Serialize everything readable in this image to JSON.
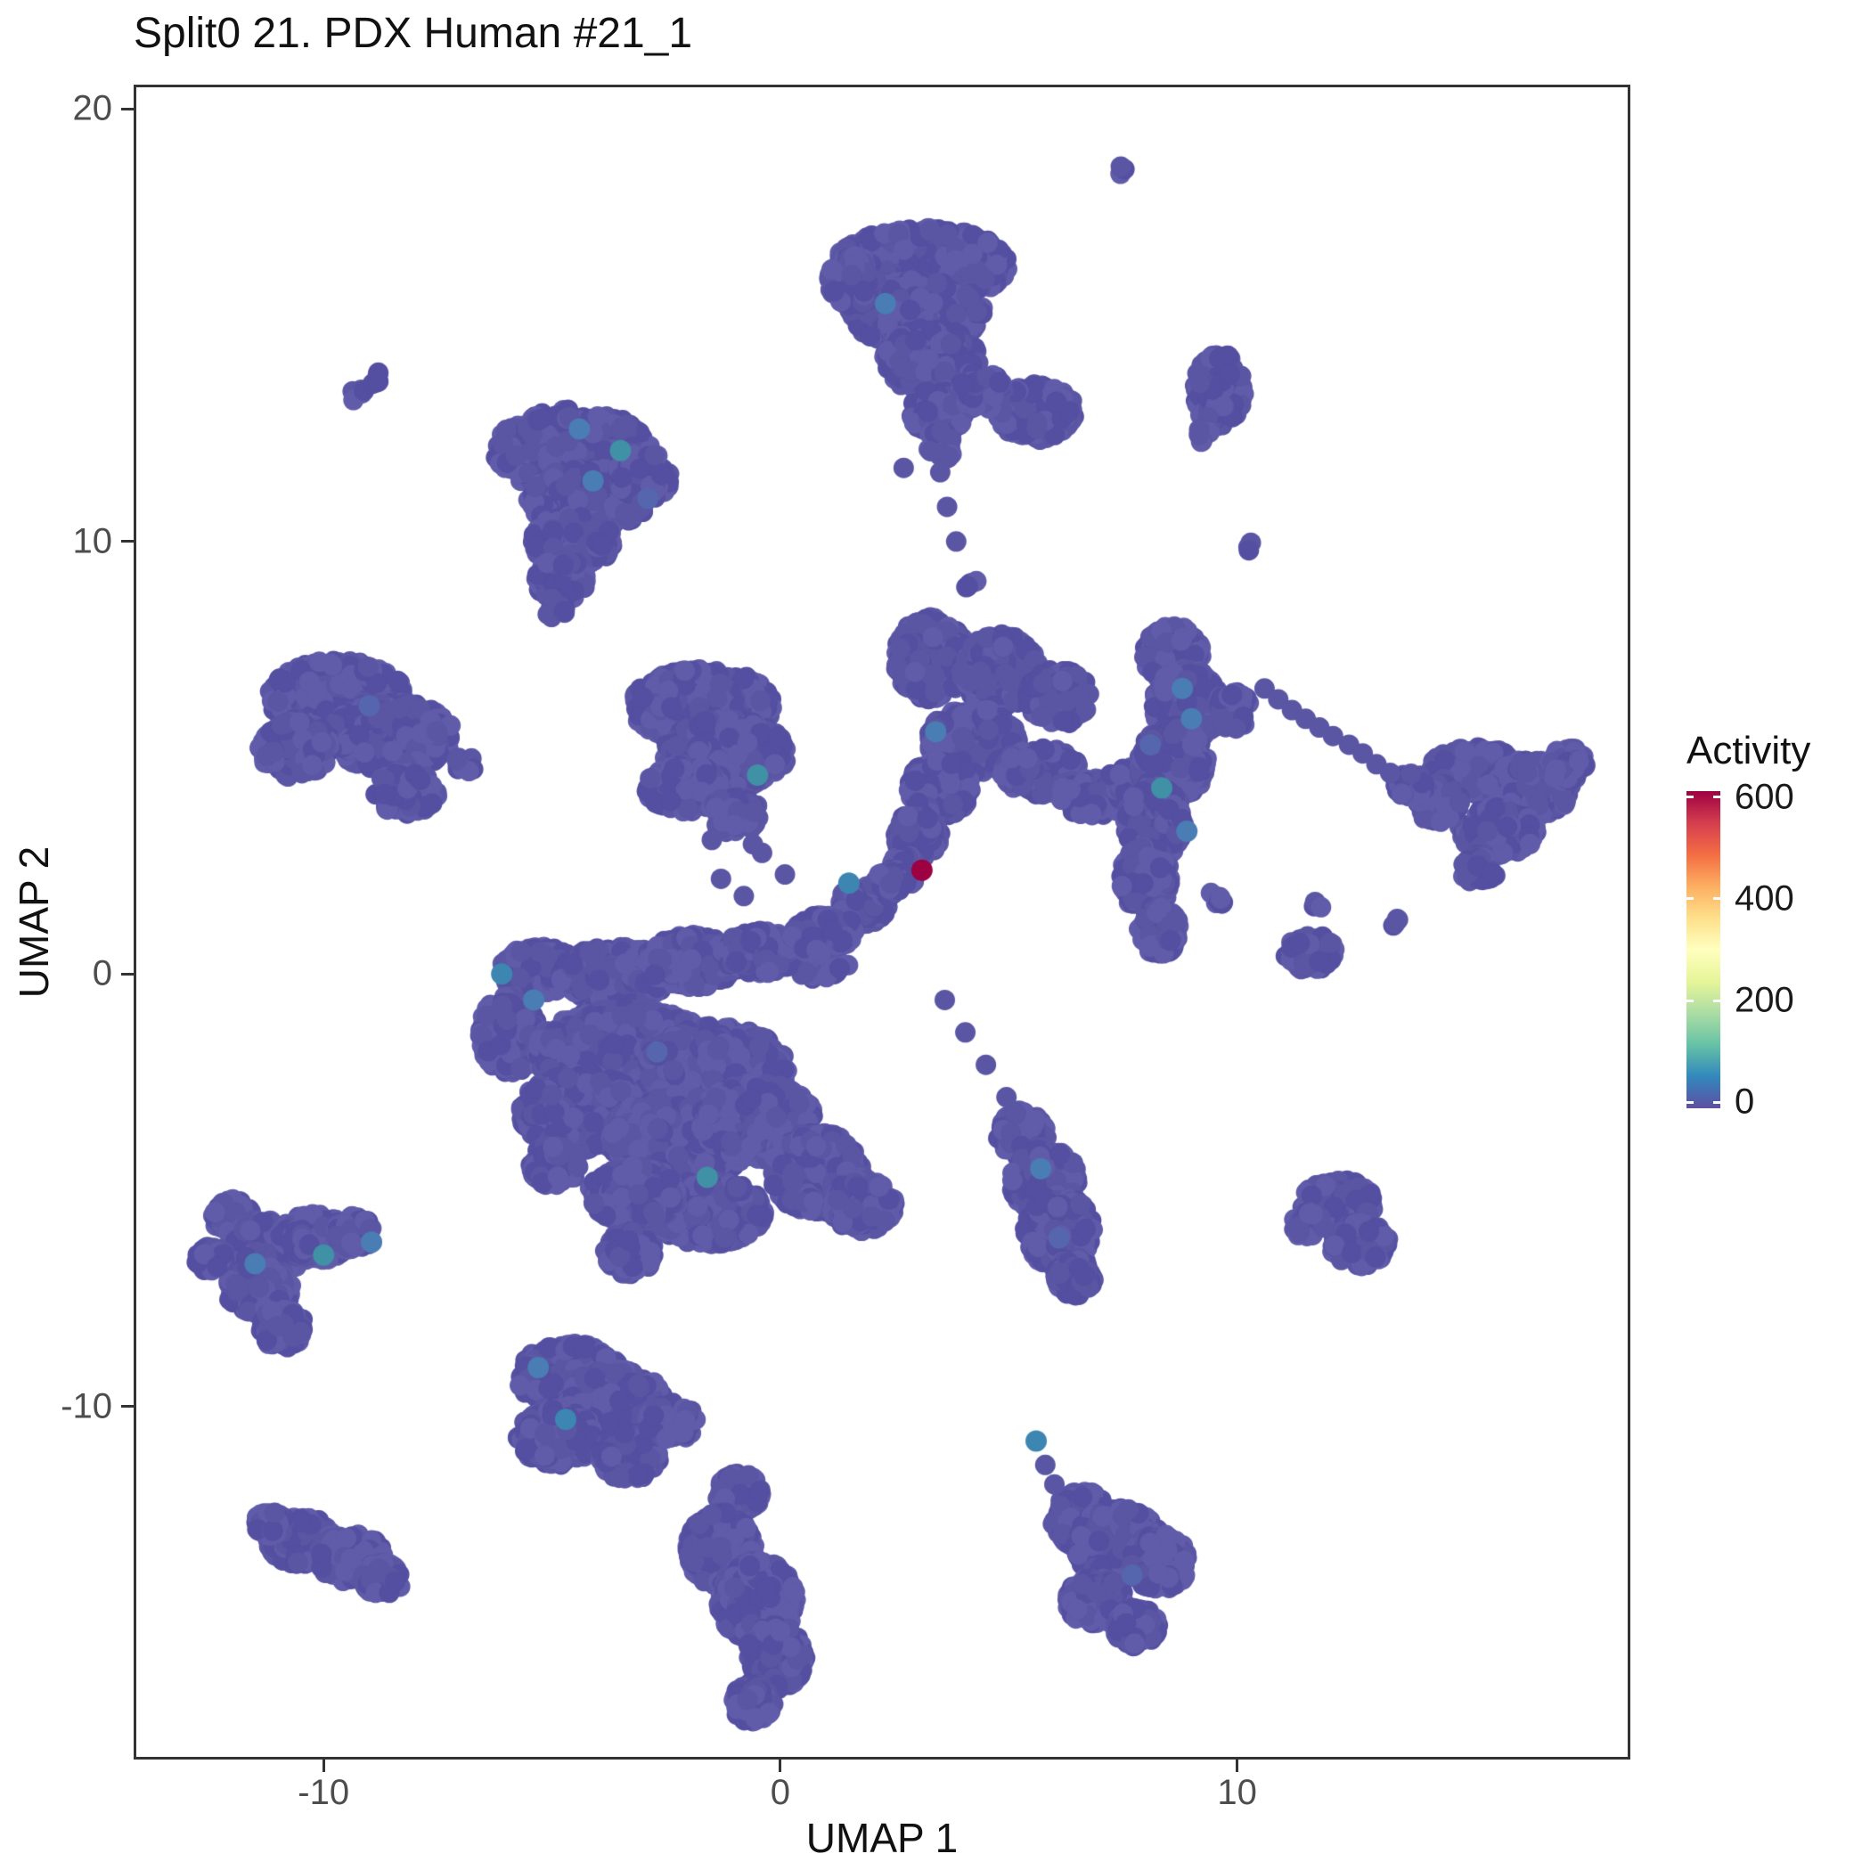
{
  "chart_data": {
    "type": "scatter",
    "title": "Split0 21. PDX Human #21_1",
    "xlabel": "UMAP 1",
    "ylabel": "UMAP 2",
    "x_ticks": [
      -10,
      0,
      10
    ],
    "y_ticks": [
      -10,
      0,
      10,
      20
    ],
    "x_range": [
      -14.1,
      18.55
    ],
    "y_range": [
      -18.1,
      20.5
    ],
    "grid": false,
    "point_radius_px": 11.5,
    "base_color": "#5a56a3",
    "base_shades": [
      "#5a56a3",
      "#544fa0",
      "#605ca9"
    ],
    "legend": {
      "title": "Activity",
      "ticks": [
        0,
        200,
        400,
        600
      ],
      "vmin": -12,
      "vmax": 612,
      "position": "right",
      "colors": [
        "#5E4FA2",
        "#3288BD",
        "#66C2A5",
        "#ABDDA4",
        "#E6F598",
        "#FFFFBF",
        "#FEE08B",
        "#FDAE61",
        "#F46D43",
        "#D53E4F",
        "#9E0142"
      ]
    },
    "clusters": [
      [
        7.4,
        18.6,
        0.14,
        0.12,
        3
      ],
      [
        3.1,
        16.4,
        1.9,
        0.85,
        650
      ],
      [
        2.95,
        15.3,
        1.5,
        0.75,
        420
      ],
      [
        3.3,
        14.2,
        1.05,
        0.75,
        260
      ],
      [
        3.45,
        13.0,
        0.6,
        0.55,
        90
      ],
      [
        3.5,
        12.2,
        0.3,
        0.35,
        30
      ],
      [
        5.6,
        13.0,
        0.85,
        0.65,
        200
      ],
      [
        4.4,
        13.5,
        0.5,
        0.45,
        80
      ],
      [
        1.6,
        16.0,
        0.55,
        0.6,
        90
      ],
      [
        9.6,
        13.5,
        0.55,
        0.85,
        150
      ],
      [
        9.2,
        12.5,
        0.2,
        0.2,
        8
      ],
      [
        10.3,
        9.9,
        0.15,
        0.12,
        3
      ],
      [
        -9.25,
        13.4,
        0.2,
        0.16,
        6
      ],
      [
        -8.8,
        13.75,
        0.2,
        0.16,
        6
      ],
      [
        -4.55,
        12.1,
        1.7,
        0.95,
        500
      ],
      [
        -4.2,
        11.0,
        1.35,
        0.7,
        320
      ],
      [
        -3.0,
        11.5,
        0.6,
        0.6,
        100
      ],
      [
        -4.55,
        10.0,
        0.9,
        0.6,
        170
      ],
      [
        -4.8,
        9.1,
        0.55,
        0.5,
        80
      ],
      [
        -4.9,
        8.45,
        0.25,
        0.25,
        15
      ],
      [
        -9.7,
        6.4,
        1.5,
        0.85,
        450
      ],
      [
        -8.5,
        5.5,
        1.35,
        0.8,
        380
      ],
      [
        -10.6,
        5.2,
        0.8,
        0.65,
        170
      ],
      [
        -8.2,
        4.2,
        0.7,
        0.5,
        100
      ],
      [
        -6.9,
        4.85,
        0.25,
        0.2,
        10
      ],
      [
        -1.7,
        6.2,
        1.55,
        0.85,
        460
      ],
      [
        -1.2,
        5.1,
        1.35,
        0.8,
        380
      ],
      [
        -2.1,
        4.3,
        0.85,
        0.55,
        160
      ],
      [
        -1.0,
        3.7,
        0.55,
        0.45,
        90
      ],
      [
        3.3,
        7.3,
        0.8,
        0.95,
        290
      ],
      [
        4.8,
        7.0,
        0.85,
        0.85,
        300
      ],
      [
        6.1,
        6.4,
        0.7,
        0.65,
        190
      ],
      [
        4.2,
        5.4,
        1.0,
        0.75,
        310
      ],
      [
        3.5,
        4.3,
        0.7,
        0.65,
        190
      ],
      [
        5.7,
        4.7,
        0.85,
        0.55,
        180
      ],
      [
        6.9,
        4.1,
        0.8,
        0.45,
        140
      ],
      [
        3.0,
        3.2,
        0.5,
        0.55,
        110
      ],
      [
        2.7,
        2.4,
        0.35,
        0.35,
        55
      ],
      [
        4.2,
        9.0,
        0.18,
        0.15,
        5
      ],
      [
        1.8,
        1.6,
        0.55,
        0.45,
        85
      ],
      [
        1.1,
        1.0,
        0.55,
        0.45,
        85
      ],
      [
        0.45,
        0.6,
        0.55,
        0.4,
        80
      ],
      [
        2.4,
        2.1,
        0.4,
        0.35,
        55
      ],
      [
        0.9,
        0.15,
        0.6,
        0.3,
        40
      ],
      [
        7.6,
        4.4,
        0.45,
        0.4,
        65
      ],
      [
        8.6,
        7.4,
        0.65,
        0.65,
        180
      ],
      [
        8.9,
        6.2,
        0.75,
        0.85,
        290
      ],
      [
        8.6,
        4.9,
        0.75,
        0.85,
        290
      ],
      [
        8.2,
        3.5,
        0.65,
        0.85,
        250
      ],
      [
        8.0,
        2.2,
        0.55,
        0.75,
        200
      ],
      [
        8.3,
        1.0,
        0.45,
        0.55,
        110
      ],
      [
        9.9,
        6.1,
        0.4,
        0.45,
        75
      ],
      [
        9.6,
        1.8,
        0.22,
        0.2,
        8
      ],
      [
        15.2,
        4.7,
        1.0,
        0.55,
        210
      ],
      [
        16.4,
        4.3,
        0.95,
        0.65,
        250
      ],
      [
        15.7,
        3.3,
        0.85,
        0.55,
        180
      ],
      [
        14.4,
        3.95,
        0.5,
        0.45,
        90
      ],
      [
        15.3,
        2.4,
        0.4,
        0.35,
        55
      ],
      [
        17.2,
        4.85,
        0.45,
        0.4,
        75
      ],
      [
        13.8,
        4.35,
        0.35,
        0.3,
        40
      ],
      [
        13.5,
        1.15,
        0.17,
        0.14,
        4
      ],
      [
        11.75,
        1.6,
        0.15,
        0.13,
        3
      ],
      [
        11.6,
        0.5,
        0.55,
        0.42,
        110
      ],
      [
        -5.3,
        0.1,
        0.85,
        0.55,
        200
      ],
      [
        -3.6,
        0.0,
        1.25,
        0.65,
        330
      ],
      [
        -1.9,
        0.3,
        1.05,
        0.6,
        260
      ],
      [
        -0.45,
        0.5,
        0.85,
        0.5,
        160
      ],
      [
        0.85,
        0.9,
        0.6,
        0.45,
        90
      ],
      [
        -5.95,
        -1.4,
        0.65,
        0.9,
        250
      ],
      [
        -3.4,
        -1.8,
        2.0,
        1.0,
        880
      ],
      [
        -1.4,
        -2.2,
        1.55,
        1.0,
        680
      ],
      [
        -4.35,
        -3.2,
        1.35,
        0.9,
        500
      ],
      [
        -2.2,
        -3.8,
        1.55,
        1.0,
        680
      ],
      [
        -0.5,
        -3.4,
        1.25,
        0.9,
        470
      ],
      [
        0.8,
        -4.6,
        1.0,
        0.95,
        400
      ],
      [
        1.8,
        -5.35,
        0.7,
        0.6,
        180
      ],
      [
        -1.6,
        -5.5,
        1.25,
        0.75,
        420
      ],
      [
        -3.2,
        -5.1,
        1.0,
        0.65,
        290
      ],
      [
        -3.3,
        -6.45,
        0.55,
        0.5,
        120
      ],
      [
        -4.95,
        -4.4,
        0.55,
        0.5,
        120
      ],
      [
        5.3,
        -3.7,
        0.55,
        0.55,
        115
      ],
      [
        5.8,
        -4.8,
        0.75,
        0.75,
        250
      ],
      [
        6.1,
        -5.95,
        0.75,
        0.85,
        290
      ],
      [
        6.45,
        -7.0,
        0.45,
        0.45,
        90
      ],
      [
        12.2,
        -5.3,
        0.8,
        0.55,
        190
      ],
      [
        12.7,
        -6.25,
        0.65,
        0.5,
        140
      ],
      [
        11.55,
        -5.8,
        0.35,
        0.3,
        45
      ],
      [
        -12.0,
        -5.6,
        0.45,
        0.4,
        90
      ],
      [
        -11.2,
        -6.3,
        0.85,
        0.65,
        250
      ],
      [
        -10.2,
        -6.1,
        0.75,
        0.55,
        190
      ],
      [
        -9.35,
        -6.0,
        0.45,
        0.4,
        85
      ],
      [
        -11.4,
        -7.3,
        0.75,
        0.55,
        190
      ],
      [
        -10.9,
        -8.2,
        0.5,
        0.45,
        100
      ],
      [
        -12.45,
        -6.6,
        0.35,
        0.3,
        50
      ],
      [
        -4.6,
        -9.3,
        1.15,
        0.75,
        390
      ],
      [
        -3.6,
        -9.9,
        1.05,
        0.75,
        350
      ],
      [
        -4.9,
        -10.7,
        0.85,
        0.65,
        240
      ],
      [
        -3.3,
        -11.15,
        0.65,
        0.55,
        150
      ],
      [
        -2.4,
        -10.35,
        0.55,
        0.45,
        100
      ],
      [
        -10.5,
        -13.1,
        0.75,
        0.55,
        195
      ],
      [
        -9.4,
        -13.5,
        0.75,
        0.55,
        195
      ],
      [
        -8.7,
        -14.0,
        0.45,
        0.4,
        75
      ],
      [
        -11.15,
        -12.7,
        0.35,
        0.3,
        45
      ],
      [
        -0.9,
        -12.0,
        0.5,
        0.45,
        105
      ],
      [
        -1.3,
        -13.3,
        0.75,
        0.85,
        290
      ],
      [
        -0.5,
        -14.5,
        0.85,
        0.95,
        350
      ],
      [
        -0.1,
        -15.8,
        0.65,
        0.75,
        240
      ],
      [
        -0.6,
        -16.85,
        0.45,
        0.45,
        95
      ],
      [
        6.6,
        -12.6,
        0.65,
        0.65,
        200
      ],
      [
        7.4,
        -13.2,
        0.95,
        0.85,
        390
      ],
      [
        8.3,
        -13.6,
        0.65,
        0.65,
        200
      ],
      [
        6.9,
        -14.5,
        0.65,
        0.55,
        175
      ],
      [
        7.8,
        -15.1,
        0.5,
        0.45,
        95
      ]
    ],
    "singles": [
      [
        -0.4,
        2.8
      ],
      [
        0.1,
        2.3
      ],
      [
        -1.3,
        2.2
      ],
      [
        -0.8,
        1.8
      ],
      [
        -0.6,
        3.0
      ],
      [
        -1.5,
        3.1
      ],
      [
        3.5,
        11.6
      ],
      [
        3.65,
        10.8
      ],
      [
        3.85,
        10.0
      ],
      [
        2.7,
        11.7
      ],
      [
        3.6,
        -0.6
      ],
      [
        4.05,
        -1.35
      ],
      [
        4.5,
        -2.1
      ],
      [
        4.95,
        -2.85
      ],
      [
        10.6,
        6.6
      ],
      [
        10.9,
        6.35
      ],
      [
        11.2,
        6.1
      ],
      [
        11.5,
        5.9
      ],
      [
        11.8,
        5.7
      ],
      [
        12.1,
        5.5
      ],
      [
        12.45,
        5.3
      ],
      [
        12.75,
        5.1
      ],
      [
        13.05,
        4.85
      ],
      [
        13.35,
        4.65
      ],
      [
        5.8,
        -11.35
      ],
      [
        6.0,
        -11.8
      ],
      [
        -1.5,
        -12.5
      ]
    ],
    "highlights": [
      [
        -4.4,
        12.6,
        "#4a7db3"
      ],
      [
        -3.5,
        12.1,
        "#4090a6"
      ],
      [
        -4.1,
        11.4,
        "#4a7db3"
      ],
      [
        -2.9,
        11.0,
        "#5566ae"
      ],
      [
        2.3,
        15.5,
        "#4a7db3"
      ],
      [
        -9.0,
        6.2,
        "#5566ae"
      ],
      [
        -0.5,
        4.6,
        "#4090a6"
      ],
      [
        3.4,
        5.6,
        "#4a7db3"
      ],
      [
        1.5,
        2.1,
        "#3d86b2"
      ],
      [
        8.8,
        6.6,
        "#4a7db3"
      ],
      [
        8.35,
        4.3,
        "#4090a6"
      ],
      [
        8.9,
        3.3,
        "#4a7db3"
      ],
      [
        8.1,
        5.3,
        "#5566ae"
      ],
      [
        9.0,
        5.9,
        "#4a7db3"
      ],
      [
        -6.1,
        0.0,
        "#3d86b2"
      ],
      [
        -5.4,
        -0.6,
        "#4a7db3"
      ],
      [
        -1.6,
        -4.7,
        "#4090a6"
      ],
      [
        -2.7,
        -1.8,
        "#5566ae"
      ],
      [
        5.7,
        -4.5,
        "#4a7db3"
      ],
      [
        6.1,
        -6.1,
        "#5566ae"
      ],
      [
        -11.5,
        -6.7,
        "#4a7db3"
      ],
      [
        -10.0,
        -6.5,
        "#4090a6"
      ],
      [
        -8.95,
        -6.2,
        "#4a7db3"
      ],
      [
        -4.7,
        -10.3,
        "#3d86b2"
      ],
      [
        -5.3,
        -9.1,
        "#4a7db3"
      ],
      [
        5.6,
        -10.8,
        "#3d86b2"
      ],
      [
        7.7,
        -13.9,
        "#5566ae"
      ],
      [
        3.1,
        2.4,
        "#9e0142"
      ]
    ]
  }
}
